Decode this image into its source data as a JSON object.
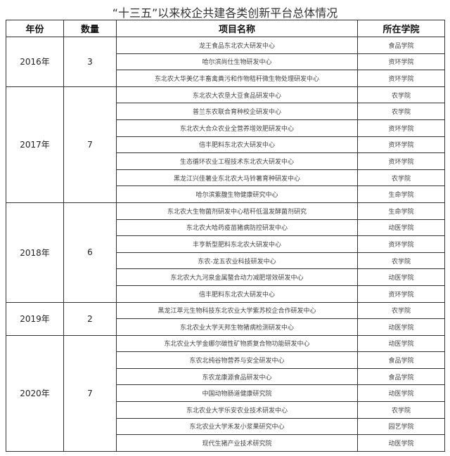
{
  "title": "“十三五”以来校企共建各类创新平台总体情况",
  "headers": {
    "year": "年份",
    "count": "数量",
    "project": "项目名称",
    "college": "所在学院"
  },
  "groups": [
    {
      "year": "2016年",
      "count": "3",
      "rows": [
        {
          "project": "龙王食品东北农大研发中心",
          "college": "食品学院"
        },
        {
          "project": "哈尔滨尚仕生物研发中心",
          "college": "资环学院"
        },
        {
          "project": "东北农大华美亿丰畜禽粪污和作物秸秆微生物处理研发中心",
          "college": "资环学院"
        }
      ]
    },
    {
      "year": "2017年",
      "count": "7",
      "rows": [
        {
          "project": "东北农大农垦大豆食品研发中心",
          "college": "农学院"
        },
        {
          "project": "普兰东农联合育种校企研发中心",
          "college": "农学院"
        },
        {
          "project": "东北农大合众农业全营养增效肥研发中心",
          "college": "资环学院"
        },
        {
          "project": "倍丰肥料东北农大研发中心",
          "college": "资环学院"
        },
        {
          "project": "生态循环农业工程技术东北农大研发中心",
          "college": "资环学院"
        },
        {
          "project": "黑龙江兴佳薯业东北农大马铃薯育种研发中心",
          "college": "农学院"
        },
        {
          "project": "哈尔滨紫馥生物健康研究中心",
          "college": "生命学院"
        }
      ]
    },
    {
      "year": "2018年",
      "count": "6",
      "rows": [
        {
          "project": "东北农大生物菌剂研发中心秸秆低温发酵菌剂研究",
          "college": "生命学院"
        },
        {
          "project": "东北农大哈药疫苗猪病防控研发中心",
          "college": "动医学院"
        },
        {
          "project": "丰亨新型肥料东北农大研发中心",
          "college": "资环学院"
        },
        {
          "project": "东农-龙五农业科技研发中心",
          "college": "农学院"
        },
        {
          "project": "东北农大九河泉金属螯合动力减肥增效研发中心",
          "college": "动医学院"
        },
        {
          "project": "倍丰肥料东北农大研发中心",
          "college": "资环学院"
        }
      ]
    },
    {
      "year": "2019年",
      "count": "2",
      "rows": [
        {
          "project": "黑龙江萃元生物科技东北农业大学紫苏校企合作研发中心",
          "college": "农学院"
        },
        {
          "project": "东北农业大学天邦生物猪病检测研发中心",
          "college": "动医学院"
        }
      ]
    },
    {
      "year": "2020年",
      "count": "7",
      "rows": [
        {
          "project": "东北农业大学金娜尔碳性矿物质复合物功能研发中心",
          "college": "动医学院"
        },
        {
          "project": "东农北纯谷物营养与安全研发中心",
          "college": "食品学院"
        },
        {
          "project": "东农龙康源食品研发中心",
          "college": "食品学院"
        },
        {
          "project": "中国动物肠道健康研究院",
          "college": "动医学院"
        },
        {
          "project": "东北农业大学乐安农业技术研发中心",
          "college": "农学院"
        },
        {
          "project": "东北农业大学禾发小浆果研究中心",
          "college": "园艺学院"
        },
        {
          "project": "现代生猪产业技术研究院",
          "college": "动医学院"
        }
      ]
    }
  ]
}
